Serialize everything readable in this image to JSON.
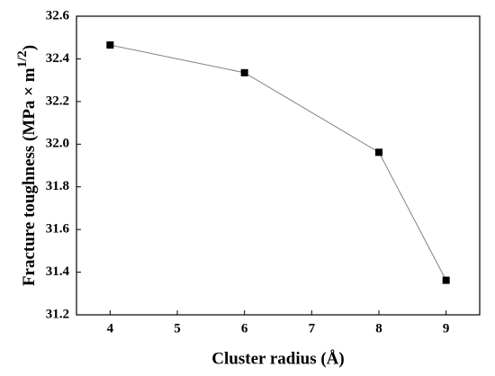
{
  "chart_data": {
    "type": "line",
    "x_label": "Cluster radius (Å)",
    "y_label": "Fracture toughness (MPa × m",
    "y_label_superscript": "1/2",
    "y_label_suffix": ")",
    "x": [
      4,
      6,
      8,
      9
    ],
    "series": [
      {
        "color": "#000000",
        "line_color": "#808080",
        "values": [
          32.465,
          32.335,
          31.962,
          31.362
        ]
      }
    ],
    "xlim": [
      3.5,
      9.5
    ],
    "xticks": [
      4,
      5,
      6,
      7,
      8,
      9
    ],
    "ylim": [
      31.2,
      32.6
    ],
    "yticks": [
      31.2,
      31.4,
      31.6,
      31.8,
      {
        "value": 32,
        "label": "32.0"
      },
      32.2,
      32.4,
      32.6
    ]
  }
}
